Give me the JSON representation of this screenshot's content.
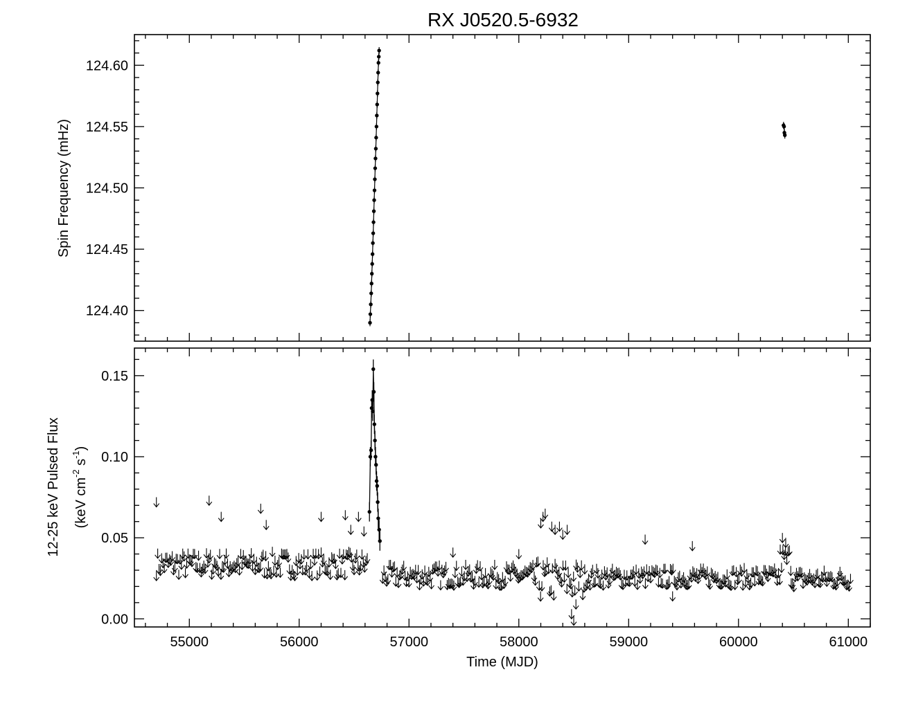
{
  "title": "RX J0520.5-6932",
  "chart_data": [
    {
      "type": "scatter",
      "panel": "top",
      "ylabel": "Spin Frequency (mHz)",
      "xlim": [
        54500,
        61200
      ],
      "ylim": [
        124.375,
        124.625
      ],
      "yticks": [
        "124.40",
        "124.45",
        "124.50",
        "124.55",
        "124.60"
      ],
      "ytick_values": [
        124.4,
        124.45,
        124.5,
        124.55,
        124.6
      ],
      "series": [
        {
          "values_xy": [
            [
              56645,
              124.39
            ],
            [
              56648,
              124.397
            ],
            [
              56652,
              124.405
            ],
            [
              56656,
              124.414
            ],
            [
              56659,
              124.422
            ],
            [
              56662,
              124.43
            ],
            [
              56665,
              124.438
            ],
            [
              56668,
              124.446
            ],
            [
              56671,
              124.455
            ],
            [
              56674,
              124.463
            ],
            [
              56677,
              124.472
            ],
            [
              56680,
              124.481
            ],
            [
              56683,
              124.49
            ],
            [
              56686,
              124.498
            ],
            [
              56689,
              124.507
            ],
            [
              56692,
              124.516
            ],
            [
              56695,
              124.524
            ],
            [
              56698,
              124.532
            ],
            [
              56701,
              124.541
            ],
            [
              56704,
              124.55
            ],
            [
              56707,
              124.559
            ],
            [
              56710,
              124.568
            ],
            [
              56713,
              124.577
            ],
            [
              56716,
              124.586
            ],
            [
              56719,
              124.594
            ],
            [
              56722,
              124.602
            ],
            [
              56725,
              124.607
            ],
            [
              56728,
              124.612
            ]
          ]
        },
        {
          "values_xy": [
            [
              60410,
              124.551
            ],
            [
              60415,
              124.55
            ],
            [
              60418,
              124.545
            ],
            [
              60422,
              124.543
            ]
          ]
        }
      ]
    },
    {
      "type": "scatter",
      "panel": "bottom",
      "xlabel": "Time (MJD)",
      "ylabel_line1": "12-25 keV Pulsed Flux",
      "ylabel_line2_parts": [
        "(keV cm",
        "-2",
        " s",
        "-1",
        ")"
      ],
      "xlim": [
        54500,
        61200
      ],
      "ylim": [
        -0.005,
        0.167
      ],
      "xticks": [
        "55000",
        "56000",
        "57000",
        "58000",
        "59000",
        "60000",
        "61000"
      ],
      "xtick_values": [
        55000,
        56000,
        57000,
        58000,
        59000,
        60000,
        61000
      ],
      "yticks": [
        "0.00",
        "0.05",
        "0.10",
        "0.15"
      ],
      "ytick_values": [
        0.0,
        0.05,
        0.1,
        0.15
      ],
      "upper_limits_segments": [
        {
          "x0": 54700,
          "x1": 56620,
          "mean": 0.037,
          "amp": 0.0075
        },
        {
          "x0": 56760,
          "x1": 58150,
          "mean": 0.03,
          "amp": 0.0065
        },
        {
          "x0": 58150,
          "x1": 58600,
          "mean": 0.027,
          "amp": 0.012
        },
        {
          "x0": 58600,
          "x1": 60380,
          "mean": 0.029,
          "amp": 0.0055
        },
        {
          "x0": 60380,
          "x1": 60480,
          "mean": 0.04,
          "amp": 0.008
        },
        {
          "x0": 60480,
          "x1": 61020,
          "mean": 0.028,
          "amp": 0.0055
        }
      ],
      "upper_limits_extra": [
        [
          54700,
          0.075
        ],
        [
          55180,
          0.076
        ],
        [
          55290,
          0.066
        ],
        [
          55650,
          0.071
        ],
        [
          55700,
          0.061
        ],
        [
          56200,
          0.066
        ],
        [
          56420,
          0.067
        ],
        [
          56470,
          0.058
        ],
        [
          56540,
          0.066
        ],
        [
          56590,
          0.057
        ],
        [
          57400,
          0.044
        ],
        [
          58000,
          0.043
        ],
        [
          58200,
          0.062
        ],
        [
          58220,
          0.066
        ],
        [
          58240,
          0.068
        ],
        [
          58300,
          0.06
        ],
        [
          58330,
          0.058
        ],
        [
          58370,
          0.06
        ],
        [
          58400,
          0.055
        ],
        [
          58440,
          0.058
        ],
        [
          58480,
          0.006
        ],
        [
          58500,
          0.002
        ],
        [
          58520,
          0.012
        ],
        [
          59150,
          0.052
        ],
        [
          59400,
          0.017
        ],
        [
          59580,
          0.048
        ],
        [
          60400,
          0.053
        ],
        [
          60430,
          0.05
        ]
      ],
      "outburst_points": [
        [
          56640,
          0.066
        ],
        [
          56648,
          0.1
        ],
        [
          56655,
          0.104
        ],
        [
          56660,
          0.13
        ],
        [
          56665,
          0.135
        ],
        [
          56670,
          0.128
        ],
        [
          56675,
          0.154
        ],
        [
          56680,
          0.14
        ],
        [
          56685,
          0.12
        ],
        [
          56690,
          0.11
        ],
        [
          56695,
          0.1
        ],
        [
          56700,
          0.095
        ],
        [
          56705,
          0.085
        ],
        [
          56710,
          0.082
        ],
        [
          56715,
          0.072
        ],
        [
          56720,
          0.062
        ],
        [
          56728,
          0.055
        ],
        [
          56735,
          0.048
        ]
      ]
    }
  ]
}
